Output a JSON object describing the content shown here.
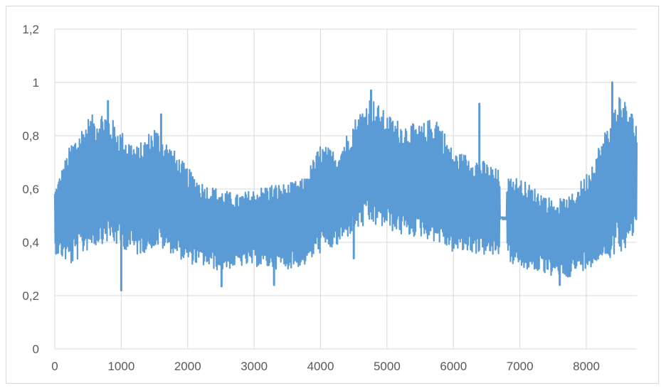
{
  "chart_data": {
    "type": "line",
    "title": "",
    "xlabel": "",
    "ylabel": "",
    "xlim": [
      0,
      8760
    ],
    "ylim": [
      0,
      1.2
    ],
    "x_ticks": [
      "0",
      "1000",
      "2000",
      "3000",
      "4000",
      "5000",
      "6000",
      "7000",
      "8000"
    ],
    "y_ticks": [
      "0",
      "0,2",
      "0,4",
      "0,6",
      "0,8",
      "1",
      "1,2"
    ],
    "grid": "vertical and horizontal",
    "legend": "none",
    "series": [
      {
        "color": "#5b9bd5",
        "x": [
          0,
          250,
          500,
          750,
          1000,
          1250,
          1500,
          1750,
          2000,
          2250,
          2500,
          2750,
          3000,
          3250,
          3500,
          3750,
          4000,
          4250,
          4500,
          4750,
          5000,
          5250,
          5500,
          5750,
          6000,
          6250,
          6500,
          6750,
          7000,
          7250,
          7500,
          7750,
          8000,
          8250,
          8500,
          8760
        ],
        "low": [
          0.36,
          0.31,
          0.37,
          0.4,
          0.38,
          0.35,
          0.38,
          0.36,
          0.32,
          0.31,
          0.29,
          0.31,
          0.31,
          0.3,
          0.3,
          0.31,
          0.36,
          0.38,
          0.44,
          0.46,
          0.45,
          0.42,
          0.42,
          0.4,
          0.36,
          0.36,
          0.35,
          0.34,
          0.3,
          0.29,
          0.27,
          0.27,
          0.3,
          0.33,
          0.36,
          0.42
        ],
        "high": [
          0.6,
          0.78,
          0.87,
          0.9,
          0.82,
          0.76,
          0.84,
          0.76,
          0.68,
          0.62,
          0.6,
          0.58,
          0.6,
          0.62,
          0.62,
          0.64,
          0.77,
          0.74,
          0.86,
          0.95,
          0.88,
          0.85,
          0.84,
          0.88,
          0.74,
          0.73,
          0.7,
          0.66,
          0.64,
          0.6,
          0.56,
          0.57,
          0.66,
          0.8,
          0.97,
          0.86
        ],
        "spikes": [
          {
            "x": 1000,
            "y": 0.22
          },
          {
            "x": 800,
            "y": 0.93
          },
          {
            "x": 1600,
            "y": 0.88
          },
          {
            "x": 2510,
            "y": 0.235
          },
          {
            "x": 3300,
            "y": 0.24
          },
          {
            "x": 4760,
            "y": 0.97
          },
          {
            "x": 4500,
            "y": 0.34
          },
          {
            "x": 6390,
            "y": 0.92
          },
          {
            "x": 7600,
            "y": 0.24
          },
          {
            "x": 8390,
            "y": 1.0
          }
        ]
      }
    ]
  }
}
